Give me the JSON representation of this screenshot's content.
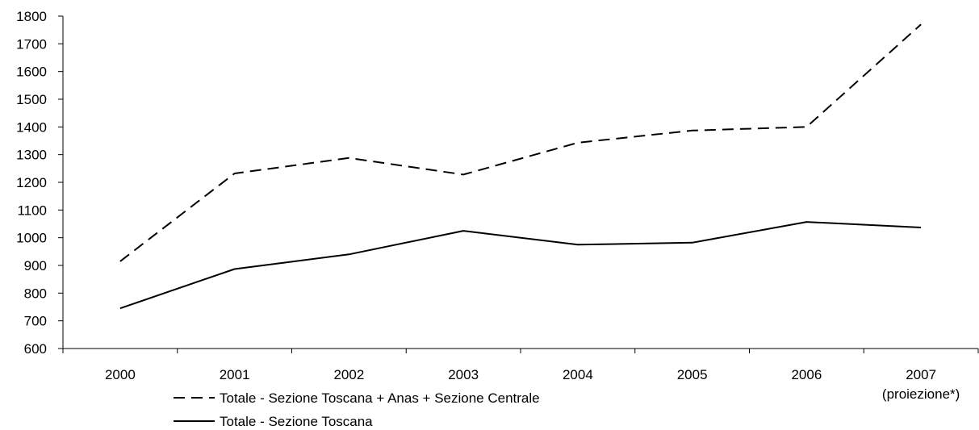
{
  "chart_data": {
    "type": "line",
    "title": "",
    "xlabel": "",
    "ylabel": "",
    "categories": [
      "2000",
      "2001",
      "2002",
      "2003",
      "2004",
      "2005",
      "2006",
      "2007"
    ],
    "category_sublabels": [
      "",
      "",
      "",
      "",
      "",
      "",
      "",
      "(proiezione*)"
    ],
    "ylim": [
      600,
      1800
    ],
    "yticks": [
      600,
      700,
      800,
      900,
      1000,
      1100,
      1200,
      1300,
      1400,
      1500,
      1600,
      1700,
      1800
    ],
    "grid": false,
    "legend_position": "bottom-left",
    "series": [
      {
        "name": "Totale - Sezione Toscana + Anas + Sezione Centrale",
        "style": "dashed",
        "color": "#000000",
        "values": [
          915,
          1232,
          1288,
          1228,
          1343,
          1387,
          1400,
          1770
        ]
      },
      {
        "name": "Totale - Sezione Toscana",
        "style": "solid",
        "color": "#000000",
        "values": [
          745,
          887,
          940,
          1025,
          975,
          982,
          1057,
          1037
        ]
      }
    ]
  }
}
